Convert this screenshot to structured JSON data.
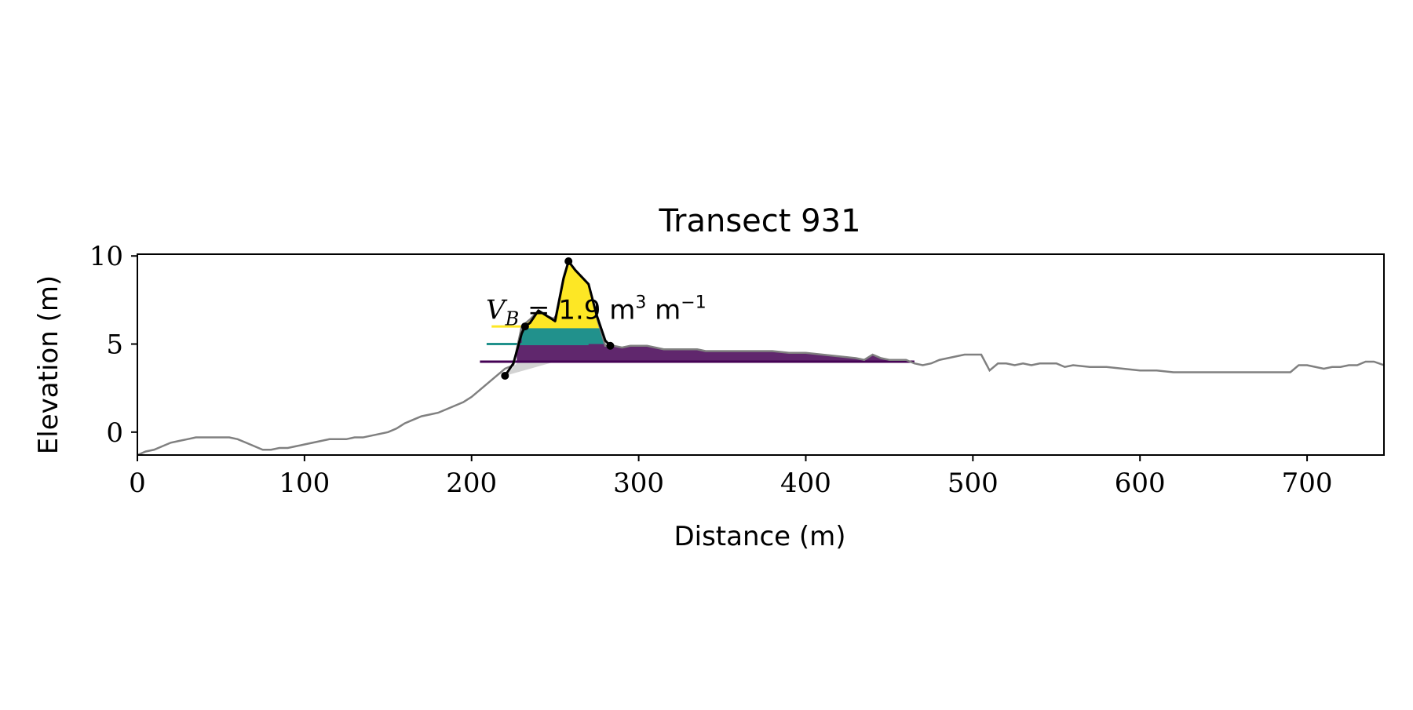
{
  "chart_data": {
    "type": "line",
    "title": "Transect 931",
    "xlabel": "Distance (m)",
    "ylabel": "Elevation (m)",
    "xlim": [
      0,
      746
    ],
    "ylim": [
      -1.3,
      10.1
    ],
    "xticks": [
      0,
      100,
      200,
      300,
      400,
      500,
      600,
      700
    ],
    "yticks": [
      0,
      5,
      10
    ],
    "grid": false,
    "legend": "none",
    "annotation": {
      "parts": [
        "V",
        "B",
        " = ",
        "1.9 m",
        "3",
        " m",
        "−1"
      ],
      "x": 210,
      "y": 6.2
    },
    "profile": {
      "color": "#808080",
      "x": [
        0,
        5,
        10,
        15,
        20,
        25,
        30,
        35,
        40,
        45,
        50,
        55,
        60,
        65,
        70,
        75,
        80,
        85,
        90,
        95,
        100,
        105,
        110,
        115,
        120,
        125,
        130,
        135,
        140,
        145,
        150,
        155,
        160,
        165,
        170,
        175,
        180,
        185,
        190,
        195,
        200,
        205,
        210,
        215,
        220,
        225,
        230,
        235,
        240,
        245,
        250,
        255,
        258,
        262,
        265,
        270,
        275,
        280,
        285,
        290,
        295,
        300,
        305,
        310,
        315,
        320,
        325,
        330,
        335,
        340,
        350,
        360,
        370,
        380,
        390,
        400,
        410,
        420,
        430,
        435,
        440,
        445,
        450,
        455,
        460,
        465,
        470,
        475,
        480,
        485,
        490,
        495,
        500,
        505,
        510,
        515,
        520,
        525,
        530,
        535,
        540,
        545,
        550,
        555,
        560,
        570,
        580,
        590,
        600,
        610,
        620,
        630,
        640,
        650,
        660,
        670,
        680,
        690,
        695,
        700,
        705,
        710,
        715,
        720,
        725,
        730,
        735,
        740,
        746
      ],
      "y": [
        -1.3,
        -1.1,
        -1.0,
        -0.8,
        -0.6,
        -0.5,
        -0.4,
        -0.3,
        -0.3,
        -0.3,
        -0.3,
        -0.3,
        -0.4,
        -0.6,
        -0.8,
        -1.0,
        -1.0,
        -0.9,
        -0.9,
        -0.8,
        -0.7,
        -0.6,
        -0.5,
        -0.4,
        -0.4,
        -0.4,
        -0.3,
        -0.3,
        -0.2,
        -0.1,
        0.0,
        0.2,
        0.5,
        0.7,
        0.9,
        1.0,
        1.1,
        1.3,
        1.5,
        1.7,
        2.0,
        2.4,
        2.8,
        3.2,
        3.6,
        3.8,
        6.0,
        6.4,
        6.9,
        6.6,
        6.4,
        8.8,
        9.7,
        9.2,
        8.9,
        8.4,
        6.5,
        4.9,
        4.9,
        4.8,
        4.9,
        4.9,
        4.9,
        4.8,
        4.7,
        4.7,
        4.7,
        4.7,
        4.7,
        4.6,
        4.6,
        4.6,
        4.6,
        4.6,
        4.5,
        4.5,
        4.4,
        4.3,
        4.2,
        4.1,
        4.4,
        4.2,
        4.1,
        4.1,
        4.1,
        3.9,
        3.8,
        3.9,
        4.1,
        4.2,
        4.3,
        4.4,
        4.4,
        4.4,
        3.5,
        3.9,
        3.9,
        3.8,
        3.9,
        3.8,
        3.9,
        3.9,
        3.9,
        3.7,
        3.8,
        3.7,
        3.7,
        3.6,
        3.5,
        3.5,
        3.4,
        3.4,
        3.4,
        3.4,
        3.4,
        3.4,
        3.4,
        3.4,
        3.8,
        3.8,
        3.7,
        3.6,
        3.7,
        3.7,
        3.8,
        3.8,
        4.0,
        4.0,
        3.8
      ]
    },
    "dune_crest_line": {
      "color": "#000000",
      "x": [
        220,
        225,
        230,
        232,
        235,
        240,
        245,
        250,
        255,
        258,
        262,
        265,
        270,
        275,
        280,
        283
      ],
      "y": [
        3.2,
        3.9,
        5.6,
        6.0,
        6.2,
        6.9,
        6.6,
        6.3,
        8.7,
        9.7,
        9.2,
        8.9,
        8.4,
        6.6,
        5.2,
        4.9
      ]
    },
    "key_points": {
      "color": "#000000",
      "x": [
        220,
        232,
        258,
        283
      ],
      "y": [
        3.2,
        6.0,
        9.7,
        4.9
      ]
    },
    "base_lines": [
      {
        "level": 6.0,
        "x_start": 212,
        "x_end": 232,
        "color": "#fde725"
      },
      {
        "level": 5.0,
        "x_start": 209,
        "x_end": 270,
        "color": "#21918c"
      },
      {
        "level": 4.0,
        "x_start": 205,
        "x_end": 465,
        "color": "#440154"
      }
    ],
    "volume_bands": [
      {
        "lower": 5.9,
        "x_start": 232,
        "x_end": 277,
        "color": "#fde725"
      },
      {
        "lower": 5.0,
        "x_start": 230,
        "x_end": 280,
        "color": "#21918c"
      },
      {
        "lower": 4.0,
        "x_start": 227,
        "x_end": 465,
        "color": "#440154",
        "opacity": 0.85
      }
    ],
    "toe_wedge": {
      "color": "#d3d3d3",
      "x": [
        220,
        228,
        250
      ],
      "y": [
        3.2,
        4.0,
        4.0
      ]
    }
  }
}
